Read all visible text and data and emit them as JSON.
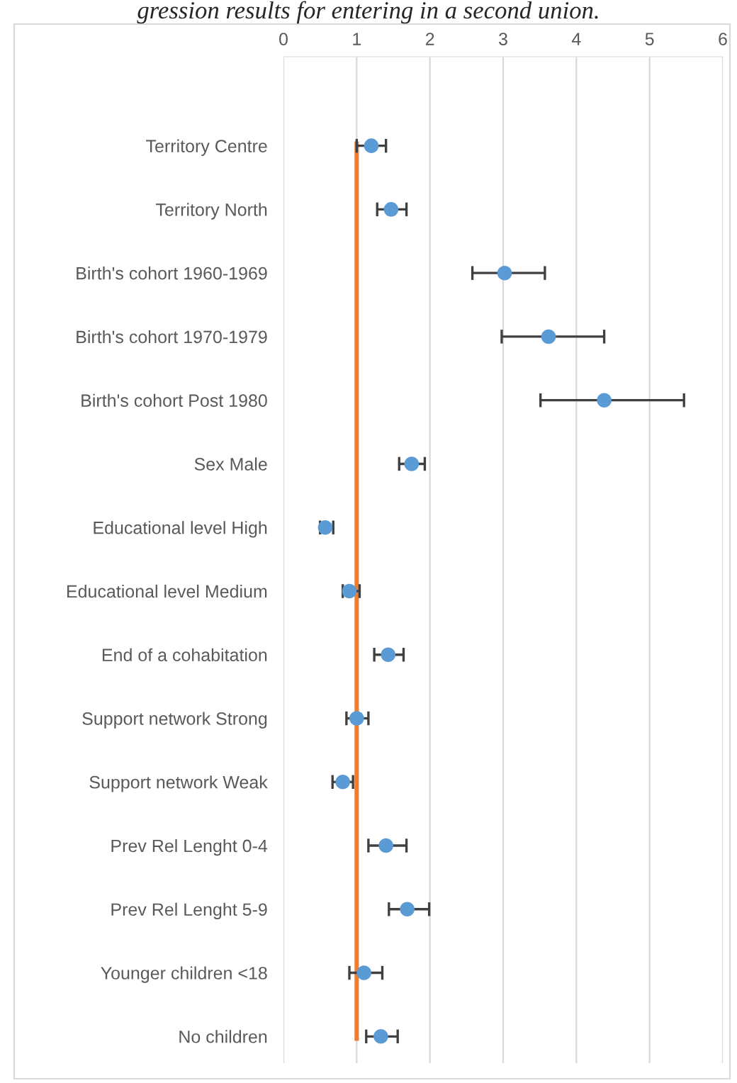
{
  "chart_data": {
    "type": "scatter",
    "title": "gression results for entering in a second union.",
    "orientation": "horizontal",
    "categories": [
      "Territory Centre",
      "Territory North",
      "Birth's cohort 1960-1969",
      "Birth's cohort 1970-1979",
      "Birth's cohort Post 1980",
      "Sex Male",
      "Educational level High",
      "Educational level Medium",
      "End of a cohabitation",
      "Support network Strong",
      "Support network Weak",
      "Prev Rel Lenght 0-4",
      "Prev Rel Lenght 5-9",
      "Younger children <18",
      "No children"
    ],
    "series": [
      {
        "color": "#5b9bd5",
        "values": [
          1.2,
          1.47,
          3.02,
          3.62,
          4.38,
          1.75,
          0.57,
          0.9,
          1.43,
          1.0,
          0.81,
          1.4,
          1.69,
          1.1,
          1.33
        ],
        "errors": [
          [
            1.0,
            1.4
          ],
          [
            1.28,
            1.68
          ],
          [
            2.58,
            3.57
          ],
          [
            2.98,
            4.38
          ],
          [
            3.51,
            5.47
          ],
          [
            1.58,
            1.93
          ],
          [
            0.5,
            0.68
          ],
          [
            0.81,
            1.04
          ],
          [
            1.24,
            1.64
          ],
          [
            0.86,
            1.16
          ],
          [
            0.67,
            0.95
          ],
          [
            1.16,
            1.68
          ],
          [
            1.44,
            1.99
          ],
          [
            0.9,
            1.35
          ],
          [
            1.13,
            1.56
          ]
        ]
      }
    ],
    "xlim": [
      0,
      6
    ],
    "xticks": [
      0,
      1,
      2,
      3,
      4,
      5,
      6
    ],
    "grid": "x",
    "marker": "circle",
    "ref_lines": [
      {
        "axis": "x",
        "value": 1,
        "color": "#ed7d31"
      }
    ]
  }
}
